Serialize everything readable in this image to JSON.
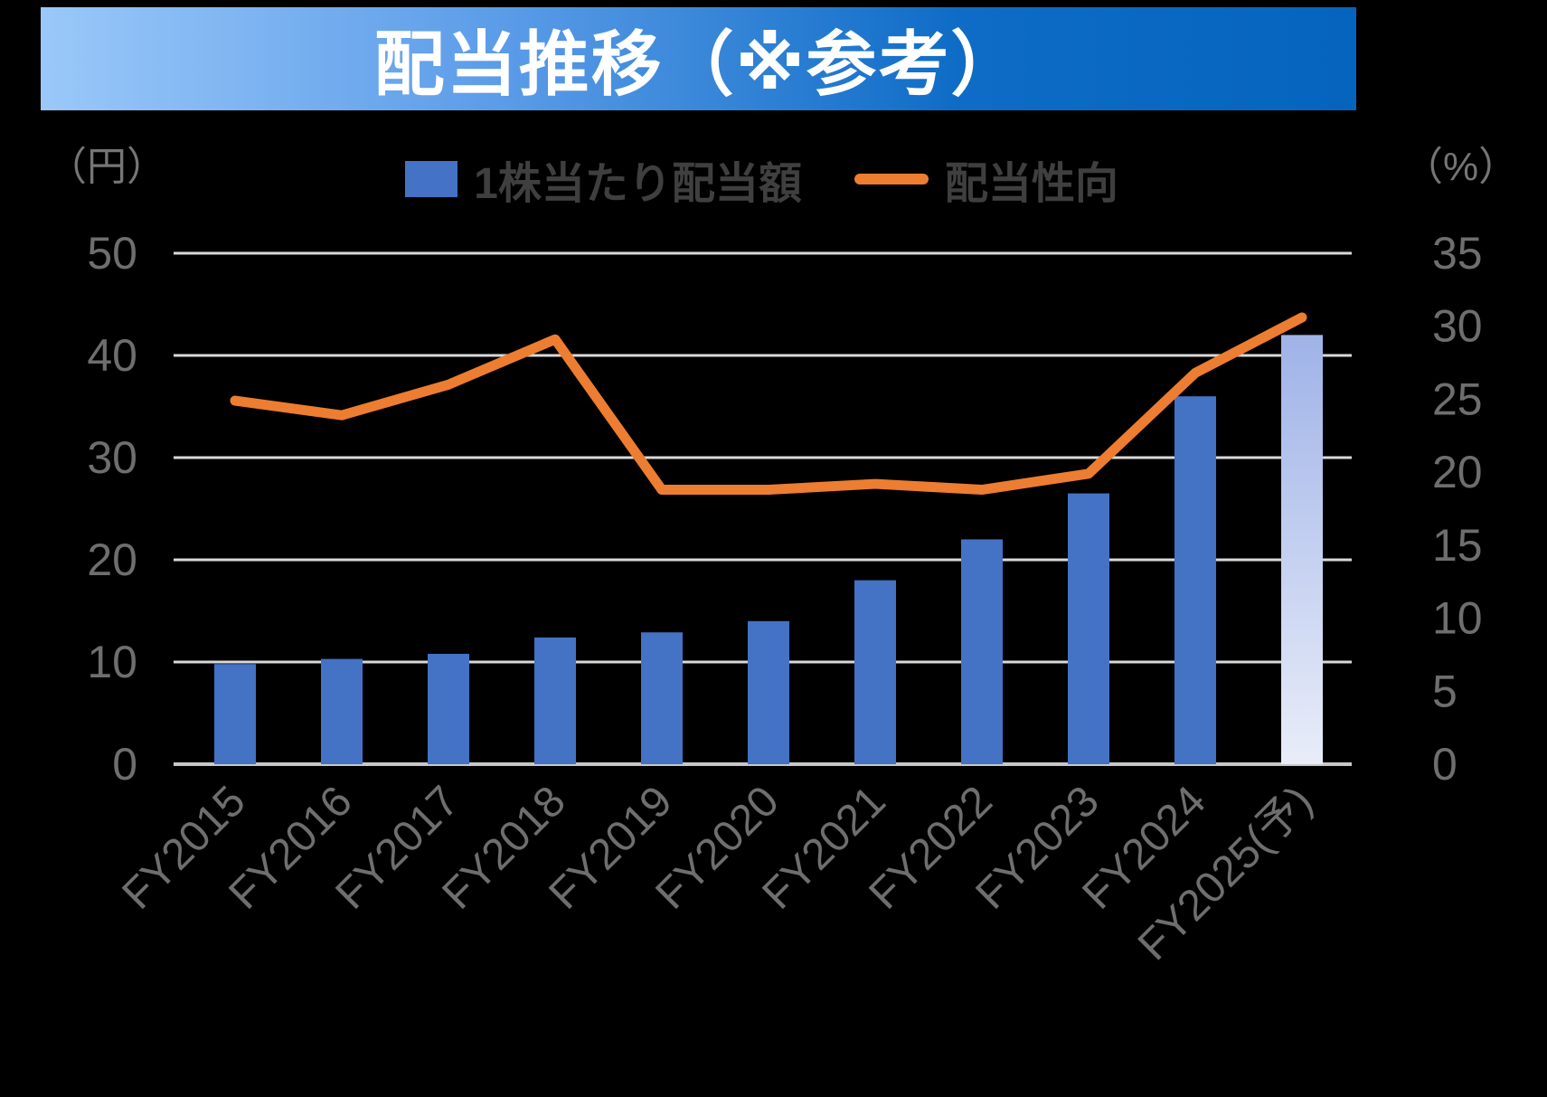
{
  "title": "配当推移（※参考）",
  "axes": {
    "left_unit": "（円）",
    "right_unit": "（%）"
  },
  "legend": {
    "bar_label": "1株当たり配当額",
    "line_label": "配当性向"
  },
  "chart_data": {
    "type": "combo-bar-line",
    "categories": [
      "FY2015",
      "FY2016",
      "FY2017",
      "FY2018",
      "FY2019",
      "FY2020",
      "FY2021",
      "FY2022",
      "FY2023",
      "FY2024",
      "FY2025(予)"
    ],
    "series": [
      {
        "name": "1株当たり配当額",
        "type": "bar",
        "axis": "left",
        "unit": "円",
        "values": [
          9.8,
          10.3,
          10.8,
          12.4,
          12.9,
          14,
          18,
          22,
          26.5,
          36,
          42
        ],
        "last_is_forecast": true
      },
      {
        "name": "配当性向",
        "type": "line",
        "axis": "right",
        "unit": "%",
        "values": [
          24.9,
          23.9,
          26.0,
          29.1,
          18.8,
          18.8,
          19.2,
          18.8,
          19.9,
          26.8,
          30.6
        ]
      }
    ],
    "left_axis": {
      "label": "（円）",
      "range": [
        0,
        50
      ],
      "ticks": [
        0,
        10,
        20,
        30,
        40,
        50
      ]
    },
    "right_axis": {
      "label": "（%）",
      "range": [
        0,
        35
      ],
      "ticks": [
        0,
        5,
        10,
        15,
        20,
        25,
        30,
        35
      ]
    },
    "grid": "horizontal-only",
    "legend_position": "top-center",
    "colors": {
      "bar": "#4472C4",
      "forecast_bar_top": "#9FB3E8",
      "forecast_bar_bottom": "#E9EDF9",
      "line": "#ED7D31",
      "gridline": "#D9D9D9",
      "zero_line": "#C8C8C8",
      "tick_text": "#6e6e6e",
      "banner_left": "#9AC8F9",
      "banner_right": "#0564BE",
      "title_text": "#FFFFFF"
    }
  }
}
